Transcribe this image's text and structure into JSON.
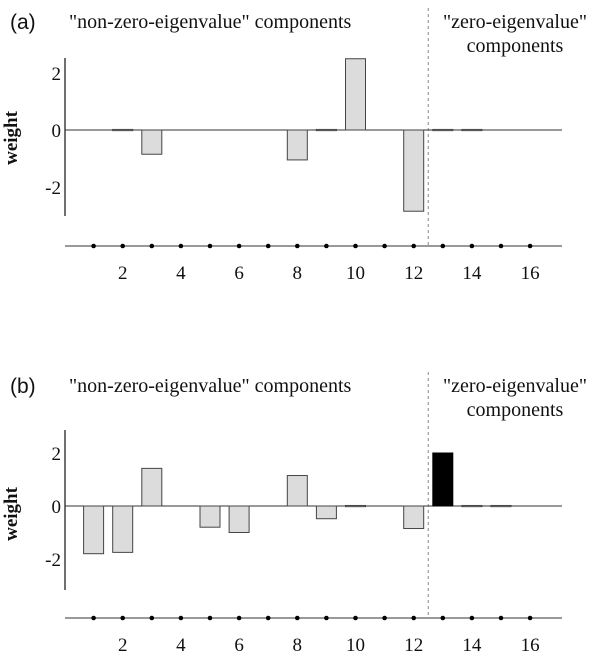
{
  "chart_data": [
    {
      "type": "bar",
      "panel_label": "(a)",
      "group_labels": {
        "nonzero": "\"non-zero-eigenvalue\" components",
        "zero_line1": "\"zero-eigenvalue\"",
        "zero_line2": "components"
      },
      "xlabel": "",
      "ylabel": "weight",
      "ylim": [
        -3,
        3
      ],
      "yticks": [
        2,
        0,
        -2
      ],
      "ytick_labels": [
        "2",
        "0",
        "-2"
      ],
      "x": [
        1,
        2,
        3,
        4,
        5,
        6,
        7,
        8,
        9,
        10,
        11,
        12,
        13,
        14,
        15,
        16
      ],
      "xticks": [
        2,
        4,
        6,
        8,
        10,
        12,
        14,
        16
      ],
      "xtick_labels": [
        "2",
        "4",
        "6",
        "8",
        "10",
        "12",
        "14",
        "16"
      ],
      "values": [
        0,
        0.02,
        -0.85,
        0,
        0,
        0,
        0,
        -1.05,
        0.02,
        2.5,
        0,
        -2.85,
        0.02,
        0.02,
        0,
        0
      ],
      "dashed_divider_at": 12.5,
      "bar_colors": [
        "#dcdcdc",
        "#dcdcdc",
        "#dcdcdc",
        "#dcdcdc",
        "#dcdcdc",
        "#dcdcdc",
        "#dcdcdc",
        "#dcdcdc",
        "#dcdcdc",
        "#dcdcdc",
        "#dcdcdc",
        "#dcdcdc",
        "#dcdcdc",
        "#dcdcdc",
        "#dcdcdc",
        "#dcdcdc"
      ]
    },
    {
      "type": "bar",
      "panel_label": "(b)",
      "group_labels": {
        "nonzero": "\"non-zero-eigenvalue\" components",
        "zero_line1": "\"zero-eigenvalue\"",
        "zero_line2": "components"
      },
      "xlabel": "",
      "ylabel": "weight",
      "ylim": [
        -3,
        3
      ],
      "yticks": [
        2,
        0,
        -2
      ],
      "ytick_labels": [
        "2",
        "0",
        "-2"
      ],
      "x": [
        1,
        2,
        3,
        4,
        5,
        6,
        7,
        8,
        9,
        10,
        11,
        12,
        13,
        14,
        15,
        16
      ],
      "xticks": [
        2,
        4,
        6,
        8,
        10,
        12,
        14,
        16
      ],
      "xtick_labels": [
        "2",
        "4",
        "6",
        "8",
        "10",
        "12",
        "14",
        "16"
      ],
      "values": [
        -1.8,
        -1.75,
        1.42,
        0,
        -0.8,
        -1.0,
        0,
        1.15,
        -0.48,
        0.02,
        0,
        -0.85,
        2.0,
        0.02,
        0.02,
        0
      ],
      "dashed_divider_at": 12.5,
      "bar_colors": [
        "#dcdcdc",
        "#dcdcdc",
        "#dcdcdc",
        "#dcdcdc",
        "#dcdcdc",
        "#dcdcdc",
        "#dcdcdc",
        "#dcdcdc",
        "#dcdcdc",
        "#dcdcdc",
        "#dcdcdc",
        "#dcdcdc",
        "#000000",
        "#dcdcdc",
        "#dcdcdc",
        "#dcdcdc"
      ]
    }
  ]
}
